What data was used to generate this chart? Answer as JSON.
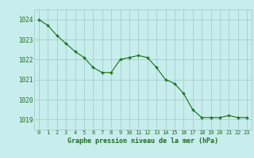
{
  "x": [
    0,
    1,
    2,
    3,
    4,
    5,
    6,
    7,
    8,
    9,
    10,
    11,
    12,
    13,
    14,
    15,
    16,
    17,
    18,
    19,
    20,
    21,
    22,
    23
  ],
  "y": [
    1024.0,
    1023.7,
    1023.2,
    1022.8,
    1022.4,
    1022.1,
    1021.6,
    1021.35,
    1021.35,
    1022.0,
    1022.1,
    1022.2,
    1022.1,
    1021.6,
    1021.0,
    1020.8,
    1020.3,
    1019.5,
    1019.1,
    1019.1,
    1019.1,
    1019.2,
    1019.1,
    1019.1
  ],
  "line_color": "#1a6e1a",
  "marker_color": "#1a6e1a",
  "bg_color": "#c8eded",
  "grid_color": "#9dc8c8",
  "xlabel": "Graphe pression niveau de la mer (hPa)",
  "xlabel_color": "#1a6e1a",
  "tick_color": "#1a6e1a",
  "ylim": [
    1018.5,
    1024.5
  ],
  "xlim": [
    -0.5,
    23.5
  ],
  "yticks": [
    1019,
    1020,
    1021,
    1022,
    1023,
    1024
  ],
  "xticks": [
    0,
    1,
    2,
    3,
    4,
    5,
    6,
    7,
    8,
    9,
    10,
    11,
    12,
    13,
    14,
    15,
    16,
    17,
    18,
    19,
    20,
    21,
    22,
    23
  ]
}
